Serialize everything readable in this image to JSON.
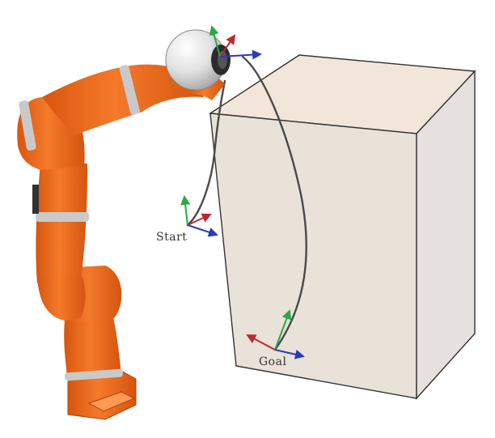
{
  "labels": {
    "start": "Start",
    "goal": "Goal"
  },
  "colors": {
    "robot": "#f06a1c",
    "robot_dark": "#c94d0c",
    "robot_band": "#bdbdbd",
    "box_front": "#e8e2d8",
    "box_top": "#f2e6da",
    "box_side": "#e6e1de",
    "box_edge": "#333333",
    "path": "#4a4a4a",
    "axis_x": "#c0272d",
    "axis_y": "#27a844",
    "axis_z": "#2b3bb8"
  },
  "icons": {
    "robot": "robot-arm-icon",
    "box": "box-obstacle-icon",
    "ball": "end-effector-sphere-icon"
  }
}
